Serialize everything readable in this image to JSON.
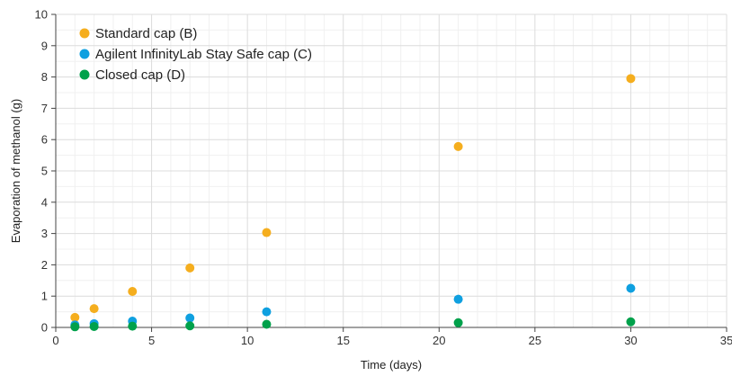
{
  "chart_data": {
    "type": "scatter",
    "title": "",
    "xlabel": "Time (days)",
    "ylabel": "Evaporation of methanol (g)",
    "xlim": [
      0,
      35
    ],
    "ylim": [
      0,
      10
    ],
    "xticks": [
      0,
      5,
      10,
      15,
      20,
      25,
      30,
      35
    ],
    "yticks": [
      0,
      1,
      2,
      3,
      4,
      5,
      6,
      7,
      8,
      9,
      10
    ],
    "grid": true,
    "legend_position": "top-left",
    "series": [
      {
        "name": "Standard cap (B)",
        "color": "#F5AE1E",
        "x": [
          1,
          2,
          4,
          7,
          11,
          21,
          30
        ],
        "y": [
          0.32,
          0.6,
          1.15,
          1.9,
          3.03,
          5.78,
          7.95
        ]
      },
      {
        "name": "Agilent InfinityLab Stay Safe cap (C)",
        "color": "#0FA0E0",
        "x": [
          1,
          2,
          4,
          7,
          11,
          21,
          30
        ],
        "y": [
          0.08,
          0.12,
          0.2,
          0.3,
          0.5,
          0.9,
          1.25
        ]
      },
      {
        "name": "Closed cap (D)",
        "color": "#00A14B",
        "x": [
          1,
          2,
          4,
          7,
          11,
          21,
          30
        ],
        "y": [
          0.02,
          0.03,
          0.04,
          0.05,
          0.1,
          0.15,
          0.18
        ]
      }
    ]
  }
}
